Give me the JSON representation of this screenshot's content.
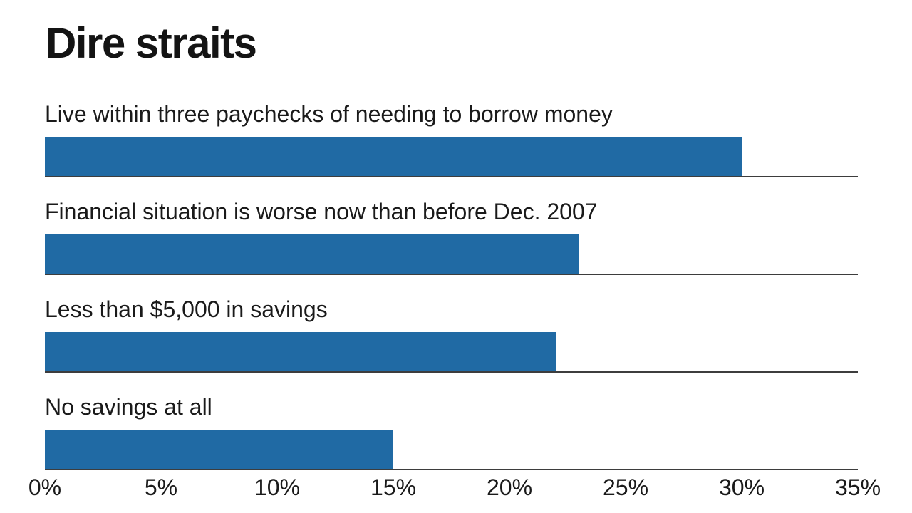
{
  "chart_data": {
    "type": "bar",
    "orientation": "horizontal",
    "title": "Dire straits",
    "categories": [
      "Live within three paychecks of needing to borrow money",
      "Financial situation is worse now than before Dec. 2007",
      "Less than $5,000 in savings",
      "No savings at all"
    ],
    "values": [
      30,
      23,
      22,
      15
    ],
    "value_unit": "%",
    "xlim": [
      0,
      35
    ],
    "x_tick_values": [
      0,
      5,
      10,
      15,
      20,
      25,
      30,
      35
    ],
    "x_tick_labels": [
      "0%",
      "5%",
      "10%",
      "15%",
      "20%",
      "25%",
      "30%",
      "35%"
    ],
    "legend": "none",
    "grid": "off",
    "bar_color": "#206aa4",
    "baseline_color": "#3d3d3d",
    "text_color": "#1a1a1a",
    "background_color": "#ffffff"
  }
}
